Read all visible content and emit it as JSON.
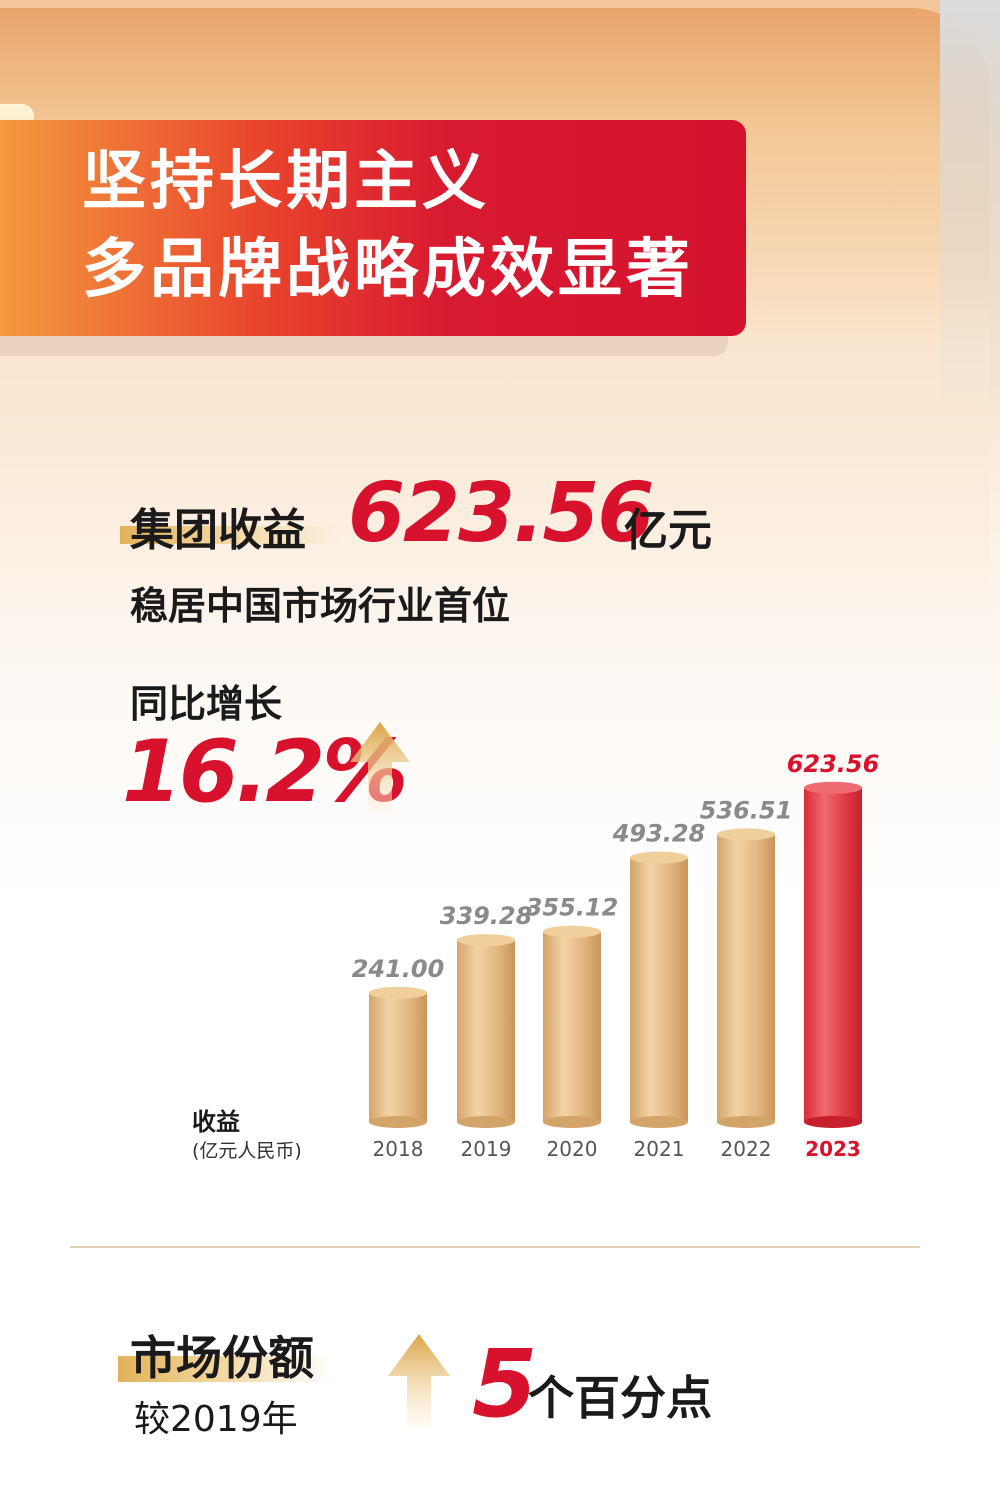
{
  "banner": {
    "line1": "坚持长期主义",
    "line2": "多品牌战略成效显著"
  },
  "revenue": {
    "label": "集团收益",
    "value": "623.56",
    "unit": "亿元",
    "rank_text": "稳居中国市场行业首位"
  },
  "growth": {
    "label": "同比增长",
    "value": "16.2%"
  },
  "chart_data": {
    "type": "bar",
    "ylabel": "收益",
    "ylabel_unit": "(亿元人民币)",
    "categories": [
      "2018",
      "2019",
      "2020",
      "2021",
      "2022",
      "2023"
    ],
    "values": [
      241.0,
      339.28,
      355.12,
      493.28,
      536.51,
      623.56
    ],
    "value_labels": [
      "241.00",
      "339.28",
      "355.12",
      "493.28",
      "536.51",
      "623.56"
    ],
    "highlight_index": 5,
    "colors": {
      "normal": "#e0b984",
      "highlight": "#e23a44",
      "label_normal": "#8a8a8a",
      "label_highlight": "#d8112d"
    }
  },
  "market_share": {
    "label": "市场份额",
    "sub": "较2019年",
    "number": "5",
    "unit": "个百分点"
  }
}
